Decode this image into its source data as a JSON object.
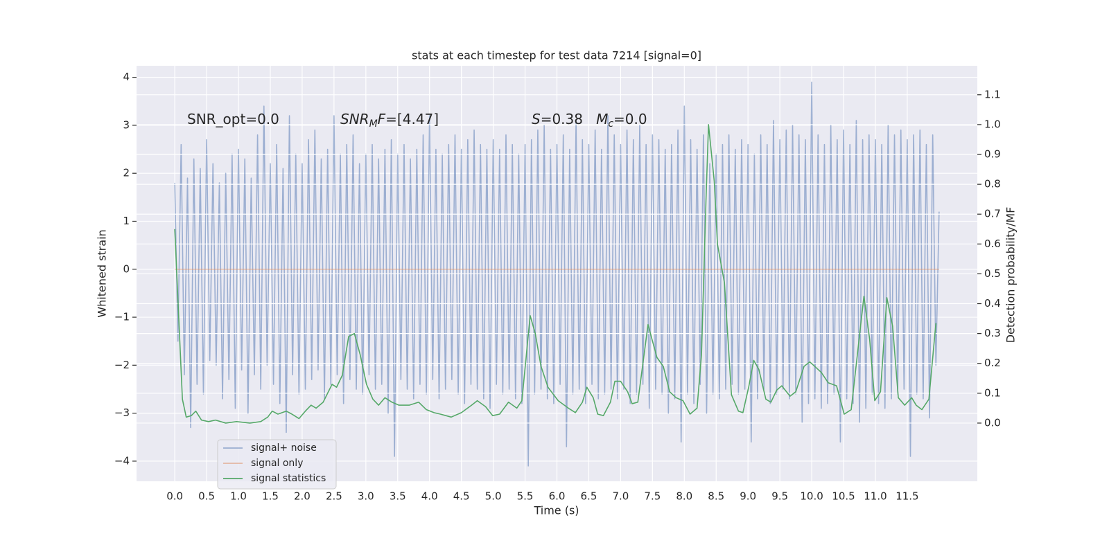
{
  "chart_data": {
    "type": "line",
    "title": "stats at each timestep for test data 7214 [signal=0]",
    "xlabel": "Time (s)",
    "ylabel": "Whitened strain",
    "y2label": "Detection probability/MF",
    "xlim": [
      -0.6,
      12.6
    ],
    "ylim": [
      -4.42,
      4.24
    ],
    "y2lim": [
      -0.195,
      1.197
    ],
    "grid": true,
    "legend_loc": "lower left",
    "xticks": [
      {
        "value": 0,
        "label": "0.0"
      },
      {
        "value": 0.5,
        "label": "0.5"
      },
      {
        "value": 1,
        "label": "1.0"
      },
      {
        "value": 1.5,
        "label": "1.5"
      },
      {
        "value": 2,
        "label": "2.0"
      },
      {
        "value": 2.5,
        "label": "2.5"
      },
      {
        "value": 3,
        "label": "3.0"
      },
      {
        "value": 3.5,
        "label": "3.5"
      },
      {
        "value": 4,
        "label": "4.0"
      },
      {
        "value": 4.5,
        "label": "4.5"
      },
      {
        "value": 5,
        "label": "5.0"
      },
      {
        "value": 5.5,
        "label": "5.5"
      },
      {
        "value": 6,
        "label": "6.0"
      },
      {
        "value": 6.5,
        "label": "6.5"
      },
      {
        "value": 7,
        "label": "7.0"
      },
      {
        "value": 7.5,
        "label": "7.5"
      },
      {
        "value": 8,
        "label": "8.0"
      },
      {
        "value": 8.5,
        "label": "8.5"
      },
      {
        "value": 9,
        "label": "9.0"
      },
      {
        "value": 9.5,
        "label": "9.5"
      },
      {
        "value": 10,
        "label": "10.0"
      },
      {
        "value": 10.5,
        "label": "10.5"
      },
      {
        "value": 11,
        "label": "11.0"
      },
      {
        "value": 11.5,
        "label": "11.5"
      }
    ],
    "yticks": [
      {
        "value": -4,
        "label": "−4"
      },
      {
        "value": -3,
        "label": "−3"
      },
      {
        "value": -2,
        "label": "−2"
      },
      {
        "value": -1,
        "label": "−1"
      },
      0,
      1,
      2,
      3,
      4
    ],
    "y2ticks": [
      {
        "value": 0,
        "label": "0.0"
      },
      {
        "value": 0.1,
        "label": "0.1"
      },
      {
        "value": 0.2,
        "label": "0.2"
      },
      {
        "value": 0.3,
        "label": "0.3"
      },
      {
        "value": 0.4,
        "label": "0.4"
      },
      {
        "value": 0.5,
        "label": "0.5"
      },
      {
        "value": 0.6,
        "label": "0.6"
      },
      {
        "value": 0.7,
        "label": "0.7"
      },
      {
        "value": 0.8,
        "label": "0.8"
      },
      {
        "value": 0.9,
        "label": "0.9"
      },
      {
        "value": 1.0,
        "label": "1.0"
      },
      {
        "value": 1.1,
        "label": "1.1"
      }
    ],
    "annotations": [
      {
        "runs": [
          {
            "text": "SNR_opt=0.0"
          }
        ]
      },
      {
        "runs": [
          {
            "text": "SNR",
            "italic": true
          },
          {
            "text": "M",
            "italic": true,
            "sub": true
          },
          {
            "text": "F",
            "italic": true
          },
          {
            "text": "=[4.47]"
          }
        ]
      },
      {
        "runs": [
          {
            "text": "S",
            "italic": true
          },
          {
            "text": "=0.38   "
          },
          {
            "text": "M",
            "italic": true
          },
          {
            "text": "c",
            "italic": true,
            "sub": true
          },
          {
            "text": "=0.0"
          }
        ]
      }
    ],
    "series": [
      {
        "name": "signal+ noise",
        "color": "#4c72b0",
        "opacity": 0.5,
        "x": [
          0,
          0.05,
          0.1,
          0.15,
          0.2,
          0.25,
          0.3,
          0.35,
          0.4,
          0.45,
          0.5,
          0.55,
          0.6,
          0.65,
          0.7,
          0.75,
          0.8,
          0.85,
          0.9,
          0.95,
          1,
          1.05,
          1.1,
          1.15,
          1.2,
          1.25,
          1.3,
          1.35,
          1.4,
          1.45,
          1.5,
          1.55,
          1.6,
          1.65,
          1.7,
          1.75,
          1.8,
          1.85,
          1.9,
          1.95,
          2,
          2.05,
          2.1,
          2.15,
          2.2,
          2.25,
          2.3,
          2.35,
          2.4,
          2.45,
          2.5,
          2.55,
          2.6,
          2.65,
          2.7,
          2.75,
          2.8,
          2.85,
          2.9,
          2.95,
          3,
          3.05,
          3.1,
          3.15,
          3.2,
          3.25,
          3.3,
          3.35,
          3.4,
          3.45,
          3.5,
          3.55,
          3.6,
          3.65,
          3.7,
          3.75,
          3.8,
          3.85,
          3.9,
          3.95,
          4,
          4.05,
          4.1,
          4.15,
          4.2,
          4.25,
          4.3,
          4.35,
          4.4,
          4.45,
          4.5,
          4.55,
          4.6,
          4.65,
          4.7,
          4.75,
          4.8,
          4.85,
          4.9,
          4.95,
          5,
          5.05,
          5.1,
          5.15,
          5.2,
          5.25,
          5.3,
          5.35,
          5.4,
          5.45,
          5.5,
          5.55,
          5.6,
          5.65,
          5.7,
          5.75,
          5.8,
          5.85,
          5.9,
          5.95,
          6,
          6.05,
          6.1,
          6.15,
          6.2,
          6.25,
          6.3,
          6.35,
          6.4,
          6.45,
          6.5,
          6.55,
          6.6,
          6.65,
          6.7,
          6.75,
          6.8,
          6.85,
          6.9,
          6.95,
          7,
          7.05,
          7.1,
          7.15,
          7.2,
          7.25,
          7.3,
          7.35,
          7.4,
          7.45,
          7.5,
          7.55,
          7.6,
          7.65,
          7.7,
          7.75,
          7.8,
          7.85,
          7.9,
          7.95,
          8,
          8.05,
          8.1,
          8.15,
          8.2,
          8.25,
          8.3,
          8.35,
          8.4,
          8.45,
          8.5,
          8.55,
          8.6,
          8.65,
          8.7,
          8.75,
          8.8,
          8.85,
          8.9,
          8.95,
          9,
          9.05,
          9.1,
          9.15,
          9.2,
          9.25,
          9.3,
          9.35,
          9.4,
          9.45,
          9.5,
          9.55,
          9.6,
          9.65,
          9.7,
          9.75,
          9.8,
          9.85,
          9.9,
          9.95,
          10,
          10.05,
          10.1,
          10.15,
          10.2,
          10.25,
          10.3,
          10.35,
          10.4,
          10.45,
          10.5,
          10.55,
          10.6,
          10.65,
          10.7,
          10.75,
          10.8,
          10.85,
          10.9,
          10.95,
          11,
          11.05,
          11.1,
          11.15,
          11.2,
          11.25,
          11.3,
          11.35,
          11.4,
          11.45,
          11.5,
          11.55,
          11.6,
          11.65,
          11.7,
          11.75,
          11.8,
          11.85,
          11.9,
          11.95,
          12
        ],
        "values": [
          1.8,
          -1.5,
          2.6,
          -2.2,
          1.9,
          -3.3,
          2.3,
          -2.4,
          2.1,
          -2.6,
          2.7,
          -1.9,
          2.2,
          -2.0,
          1.8,
          -2.7,
          2.0,
          -2.3,
          2.4,
          -2.9,
          2.5,
          -2.1,
          2.3,
          -3.0,
          1.9,
          -2.2,
          2.8,
          -2.5,
          3.4,
          -2.0,
          2.2,
          -2.4,
          2.6,
          -2.8,
          2.1,
          -3.4,
          3.2,
          -2.2,
          2.4,
          -2.6,
          2.2,
          -2.5,
          2.7,
          -2.3,
          2.9,
          -2.1,
          2.3,
          -2.7,
          2.5,
          -2.4,
          3.2,
          -2.2,
          2.4,
          -2.8,
          2.6,
          -2.3,
          2.8,
          -2.5,
          2.2,
          -2.6,
          2.4,
          -2.2,
          2.6,
          -2.5,
          2.3,
          -2.4,
          2.5,
          -3.0,
          2.7,
          -3.9,
          2.4,
          -2.3,
          2.6,
          -2.5,
          2.3,
          -2.7,
          2.5,
          -2.4,
          2.8,
          -2.6,
          3.2,
          -2.3,
          2.5,
          -2.7,
          2.4,
          -2.5,
          2.6,
          -2.3,
          2.8,
          -2.6,
          2.5,
          -2.8,
          2.7,
          -2.4,
          2.9,
          -2.5,
          2.6,
          -2.7,
          2.5,
          -2.9,
          2.7,
          -2.4,
          2.5,
          -2.6,
          2.8,
          -2.5,
          2.6,
          -2.7,
          2.4,
          -2.8,
          2.6,
          -4.1,
          2.7,
          -2.6,
          2.9,
          -2.5,
          3.0,
          -2.7,
          2.5,
          -2.8,
          2.6,
          -2.4,
          2.8,
          -3.7,
          2.5,
          -2.6,
          3.1,
          -2.5,
          2.7,
          -2.8,
          2.6,
          -2.4,
          2.9,
          -2.7,
          2.5,
          -2.6,
          3.2,
          -2.5,
          2.8,
          -2.7,
          2.6,
          -2.5,
          2.9,
          -2.8,
          2.7,
          -2.6,
          3.0,
          -2.4,
          2.6,
          -2.9,
          2.8,
          -2.5,
          2.7,
          -2.6,
          2.5,
          -3.0,
          2.6,
          -2.7,
          2.9,
          -3.6,
          3.4,
          -2.6,
          2.7,
          -2.8,
          2.5,
          -2.4,
          2.8,
          -3.0,
          2.2,
          -2.6,
          2.4,
          -2.7,
          2.6,
          -2.5,
          2.8,
          -2.4,
          2.5,
          -2.6,
          2.7,
          -2.5,
          2.6,
          -3.6,
          2.4,
          -2.7,
          2.8,
          -2.5,
          2.6,
          -2.8,
          3.1,
          -2.6,
          2.7,
          -2.5,
          2.9,
          -2.7,
          3.0,
          -2.6,
          2.8,
          -3.2,
          2.7,
          -2.8,
          3.9,
          -2.7,
          2.8,
          -2.9,
          2.6,
          -2.8,
          3.0,
          -2.6,
          2.7,
          -3.6,
          2.9,
          -2.7,
          2.6,
          -2.8,
          3.1,
          -3.2,
          2.7,
          -2.9,
          2.8,
          -2.6,
          2.7,
          -2.8,
          2.6,
          -2.9,
          3.0,
          -2.7,
          2.8,
          -2.6,
          2.9,
          -2.5,
          2.7,
          -3.9,
          2.8,
          -2.6,
          2.9,
          -2.7,
          2.6,
          -3.1,
          2.8,
          -2.0,
          1.2
        ]
      },
      {
        "name": "signal only",
        "color": "#dd8452",
        "opacity": 0.5,
        "x": [
          0,
          12
        ],
        "values": [
          0,
          0
        ]
      },
      {
        "name": "signal statistics",
        "color": "#55a868",
        "opacity": 1,
        "axis": "y2",
        "x": [
          0,
          0.12,
          0.18,
          0.26,
          0.33,
          0.42,
          0.53,
          0.64,
          0.8,
          0.97,
          1.18,
          1.35,
          1.46,
          1.53,
          1.62,
          1.75,
          1.84,
          1.95,
          2.05,
          2.14,
          2.22,
          2.33,
          2.47,
          2.54,
          2.63,
          2.73,
          2.82,
          2.91,
          3.01,
          3.11,
          3.2,
          3.3,
          3.41,
          3.52,
          3.68,
          3.83,
          3.95,
          4.07,
          4.17,
          4.34,
          4.5,
          4.66,
          4.75,
          4.88,
          4.99,
          5.1,
          5.24,
          5.37,
          5.45,
          5.58,
          5.66,
          5.75,
          5.86,
          6.02,
          6.18,
          6.29,
          6.4,
          6.47,
          6.57,
          6.64,
          6.73,
          6.84,
          6.91,
          7.0,
          7.11,
          7.18,
          7.27,
          7.43,
          7.57,
          7.67,
          7.77,
          7.87,
          7.98,
          8.09,
          8.2,
          8.27,
          8.34,
          8.38,
          8.47,
          8.52,
          8.63,
          8.74,
          8.85,
          8.92,
          9.01,
          9.09,
          9.17,
          9.28,
          9.36,
          9.45,
          9.53,
          9.66,
          9.75,
          9.88,
          9.97,
          10.15,
          10.26,
          10.39,
          10.51,
          10.62,
          10.82,
          10.91,
          10.99,
          11.08,
          11.18,
          11.27,
          11.36,
          11.46,
          11.57,
          11.64,
          11.73,
          11.84,
          11.95
        ],
        "values": [
          0.65,
          0.08,
          0.02,
          0.025,
          0.04,
          0.01,
          0.005,
          0.01,
          0.0,
          0.005,
          0.0,
          0.005,
          0.02,
          0.04,
          0.03,
          0.04,
          0.03,
          0.015,
          0.04,
          0.06,
          0.05,
          0.07,
          0.13,
          0.12,
          0.16,
          0.29,
          0.3,
          0.23,
          0.13,
          0.08,
          0.06,
          0.085,
          0.07,
          0.06,
          0.06,
          0.07,
          0.045,
          0.035,
          0.03,
          0.02,
          0.035,
          0.06,
          0.075,
          0.055,
          0.025,
          0.03,
          0.07,
          0.05,
          0.075,
          0.36,
          0.3,
          0.19,
          0.12,
          0.075,
          0.05,
          0.035,
          0.07,
          0.12,
          0.085,
          0.03,
          0.025,
          0.07,
          0.14,
          0.14,
          0.105,
          0.065,
          0.07,
          0.33,
          0.22,
          0.19,
          0.105,
          0.085,
          0.075,
          0.03,
          0.05,
          0.23,
          0.745,
          1.0,
          0.81,
          0.6,
          0.47,
          0.095,
          0.04,
          0.035,
          0.12,
          0.21,
          0.18,
          0.08,
          0.07,
          0.11,
          0.125,
          0.09,
          0.105,
          0.19,
          0.205,
          0.17,
          0.135,
          0.125,
          0.03,
          0.045,
          0.425,
          0.28,
          0.075,
          0.105,
          0.42,
          0.325,
          0.085,
          0.06,
          0.085,
          0.06,
          0.045,
          0.08,
          0.335
        ]
      }
    ]
  }
}
